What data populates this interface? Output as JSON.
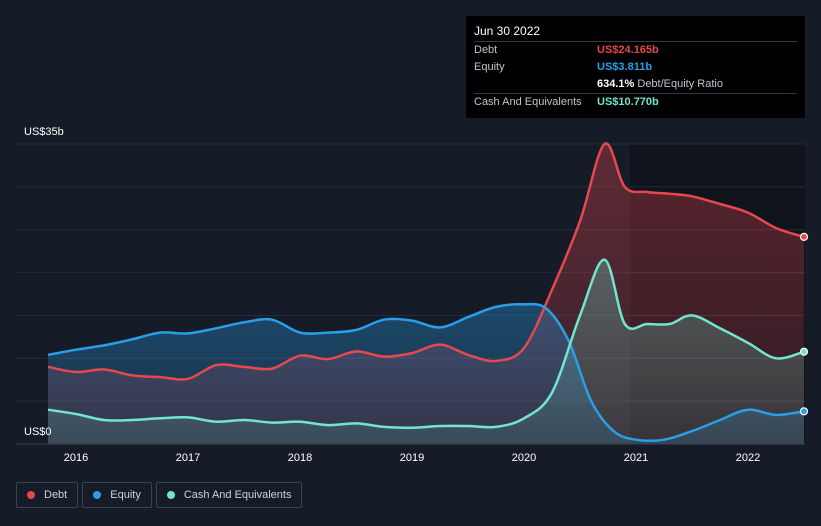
{
  "chart_data": {
    "type": "area",
    "title": "",
    "y_top_label": "US$35b",
    "y_bottom_label": "US$0",
    "ylim": [
      0,
      35
    ],
    "xlim": [
      2015.75,
      2022.5
    ],
    "x_ticks": [
      "2016",
      "2017",
      "2018",
      "2019",
      "2020",
      "2021",
      "2022"
    ],
    "series": [
      {
        "name": "Debt",
        "color": "#e8474e",
        "points": [
          [
            2015.75,
            9.0
          ],
          [
            2016.0,
            8.4
          ],
          [
            2016.25,
            8.7
          ],
          [
            2016.5,
            8.0
          ],
          [
            2016.75,
            7.8
          ],
          [
            2017.0,
            7.6
          ],
          [
            2017.25,
            9.2
          ],
          [
            2017.5,
            9.0
          ],
          [
            2017.75,
            8.8
          ],
          [
            2018.0,
            10.3
          ],
          [
            2018.25,
            9.9
          ],
          [
            2018.5,
            10.8
          ],
          [
            2018.75,
            10.2
          ],
          [
            2019.0,
            10.6
          ],
          [
            2019.25,
            11.6
          ],
          [
            2019.5,
            10.4
          ],
          [
            2019.75,
            9.7
          ],
          [
            2020.0,
            11.2
          ],
          [
            2020.25,
            18.0
          ],
          [
            2020.5,
            26.0
          ],
          [
            2020.72,
            35.0
          ],
          [
            2020.9,
            30.0
          ],
          [
            2021.1,
            29.4
          ],
          [
            2021.3,
            29.2
          ],
          [
            2021.5,
            28.9
          ],
          [
            2021.75,
            28.0
          ],
          [
            2022.0,
            27.0
          ],
          [
            2022.25,
            25.2
          ],
          [
            2022.5,
            24.165
          ]
        ]
      },
      {
        "name": "Equity",
        "color": "#2a9ee8",
        "points": [
          [
            2015.75,
            10.4
          ],
          [
            2016.0,
            11.0
          ],
          [
            2016.25,
            11.5
          ],
          [
            2016.5,
            12.2
          ],
          [
            2016.75,
            13.0
          ],
          [
            2017.0,
            12.9
          ],
          [
            2017.25,
            13.5
          ],
          [
            2017.5,
            14.2
          ],
          [
            2017.75,
            14.5
          ],
          [
            2018.0,
            13.0
          ],
          [
            2018.25,
            13.0
          ],
          [
            2018.5,
            13.3
          ],
          [
            2018.75,
            14.5
          ],
          [
            2019.0,
            14.4
          ],
          [
            2019.25,
            13.6
          ],
          [
            2019.5,
            14.8
          ],
          [
            2019.75,
            16.0
          ],
          [
            2020.0,
            16.3
          ],
          [
            2020.2,
            15.8
          ],
          [
            2020.4,
            12.0
          ],
          [
            2020.6,
            5.0
          ],
          [
            2020.8,
            1.5
          ],
          [
            2021.0,
            0.5
          ],
          [
            2021.25,
            0.5
          ],
          [
            2021.5,
            1.5
          ],
          [
            2021.75,
            2.8
          ],
          [
            2022.0,
            4.0
          ],
          [
            2022.25,
            3.4
          ],
          [
            2022.5,
            3.811
          ]
        ]
      },
      {
        "name": "Cash And Equivalents",
        "color": "#71e5cf",
        "points": [
          [
            2015.75,
            4.0
          ],
          [
            2016.0,
            3.5
          ],
          [
            2016.25,
            2.8
          ],
          [
            2016.5,
            2.8
          ],
          [
            2016.75,
            3.0
          ],
          [
            2017.0,
            3.1
          ],
          [
            2017.25,
            2.6
          ],
          [
            2017.5,
            2.8
          ],
          [
            2017.75,
            2.5
          ],
          [
            2018.0,
            2.6
          ],
          [
            2018.25,
            2.2
          ],
          [
            2018.5,
            2.4
          ],
          [
            2018.75,
            2.0
          ],
          [
            2019.0,
            1.9
          ],
          [
            2019.25,
            2.1
          ],
          [
            2019.5,
            2.1
          ],
          [
            2019.75,
            2.0
          ],
          [
            2020.0,
            3.0
          ],
          [
            2020.25,
            6.0
          ],
          [
            2020.5,
            15.0
          ],
          [
            2020.72,
            21.5
          ],
          [
            2020.9,
            14.0
          ],
          [
            2021.1,
            14.0
          ],
          [
            2021.3,
            14.0
          ],
          [
            2021.5,
            15.0
          ],
          [
            2021.75,
            13.5
          ],
          [
            2022.0,
            11.8
          ],
          [
            2022.25,
            10.0
          ],
          [
            2022.5,
            10.77
          ]
        ]
      }
    ],
    "legend": "bottom-left"
  },
  "tooltip": {
    "date": "Jun 30 2022",
    "rows": [
      {
        "label": "Debt",
        "value": "US$24.165b",
        "color": "#e8474e"
      },
      {
        "label": "Equity",
        "value": "US$3.811b",
        "color": "#2a9ee8"
      }
    ],
    "ratio_value": "634.1%",
    "ratio_label": "Debt/Equity Ratio",
    "cash": {
      "label": "Cash And Equivalents",
      "value": "US$10.770b",
      "color": "#71e5cf"
    }
  },
  "legend": {
    "items": [
      {
        "label": "Debt",
        "color": "#e8474e"
      },
      {
        "label": "Equity",
        "color": "#2a9ee8"
      },
      {
        "label": "Cash And Equivalents",
        "color": "#71e5cf"
      }
    ]
  }
}
